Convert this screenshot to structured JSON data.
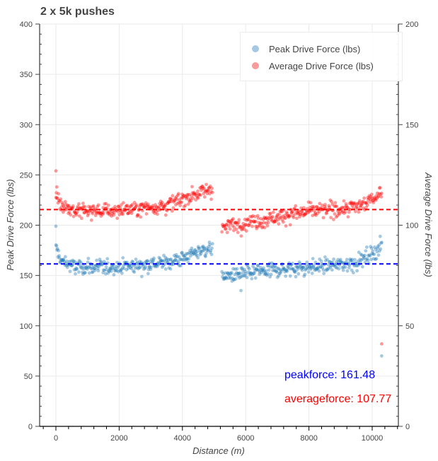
{
  "chart_data": {
    "type": "scatter",
    "title": "2 x 5k pushes",
    "xlabel": "Distance (m)",
    "ylabel": "Peak Drive Force (lbs)",
    "y2label": "Average Drive Force (lbs)",
    "xlim": [
      -500,
      10900
    ],
    "ylim": [
      0,
      400
    ],
    "y2lim": [
      0,
      200
    ],
    "x_ticks": [
      0,
      2000,
      4000,
      6000,
      8000,
      10000
    ],
    "y_ticks": [
      0,
      50,
      100,
      150,
      200,
      250,
      300,
      350,
      400
    ],
    "y2_ticks": [
      0,
      50,
      100,
      150,
      200
    ],
    "grid": true,
    "legend_position": "top-right",
    "series": [
      {
        "name": "Peak Drive Force (lbs)",
        "axis": "left",
        "color": "#1f77b4",
        "legend_color": "#a6c8e3",
        "alpha": 0.4,
        "segments": [
          {
            "x_start": 0,
            "x_end": 4950,
            "n": 300,
            "trend_x": [
              0,
              150,
              600,
              1500,
              2500,
              3500,
              4000,
              4500,
              4950
            ],
            "trend_y": [
              178,
              165,
              158,
              158,
              160,
              163,
              167,
              174,
              178
            ],
            "spread": 6
          },
          {
            "x_start": 5250,
            "x_end": 10300,
            "n": 300,
            "trend_x": [
              5250,
              5500,
              6000,
              7000,
              8000,
              9000,
              9500,
              10000,
              10300
            ],
            "trend_y": [
              148,
              150,
              152,
              156,
              158,
              161,
              163,
              172,
              180
            ],
            "spread": 6
          }
        ],
        "outliers": [
          [
            10300,
            70
          ],
          [
            0,
            199
          ],
          [
            5850,
            135
          ]
        ],
        "mean": 161.48
      },
      {
        "name": "Average Drive Force (lbs)",
        "axis": "right",
        "color": "#ff0000",
        "legend_color": "#f79b9b",
        "alpha": 0.4,
        "segments": [
          {
            "x_start": 0,
            "x_end": 4950,
            "n": 300,
            "trend_x": [
              0,
              150,
              600,
              1500,
              2500,
              3500,
              4000,
              4500,
              4950
            ],
            "trend_y": [
              115,
              111,
              107,
              107,
              108,
              110,
              113,
              116,
              118
            ],
            "spread": 3
          },
          {
            "x_start": 5250,
            "x_end": 10300,
            "n": 300,
            "trend_x": [
              5250,
              5500,
              6000,
              7000,
              8000,
              9000,
              9500,
              10000,
              10300
            ],
            "trend_y": [
              99,
              100,
              101,
              104,
              107,
              108,
              109,
              113,
              117
            ],
            "spread": 3
          }
        ],
        "outliers": [
          [
            10300,
            41
          ],
          [
            0,
            127
          ],
          [
            30,
            119
          ]
        ],
        "mean": 107.77
      }
    ],
    "reference_lines": [
      {
        "label": "peakforce",
        "value": 161.48,
        "axis": "left",
        "color": "#0000ff",
        "dash": "dashed"
      },
      {
        "label": "averageforce",
        "value": 107.77,
        "axis": "right",
        "color": "#ff0000",
        "dash": "dashed"
      }
    ],
    "annotations": [
      {
        "text": "peakforce: 161.48",
        "color": "#0000ff"
      },
      {
        "text": "averageforce: 107.77",
        "color": "#ff0000"
      }
    ]
  },
  "ui": {
    "title": "2 x 5k pushes",
    "legend": {
      "peak_label": "Peak Drive Force (lbs)",
      "average_label": "Average Drive Force (lbs)"
    },
    "annotations": {
      "peak": "peakforce: 161.48",
      "average": "averageforce: 107.77"
    },
    "colors": {
      "peak_line": "#0000ff",
      "average_line": "#ff0000",
      "peak_points": "#1f77b4",
      "average_points": "#ff0000",
      "grid": "#e6e6e6",
      "axis": "#444444"
    }
  }
}
